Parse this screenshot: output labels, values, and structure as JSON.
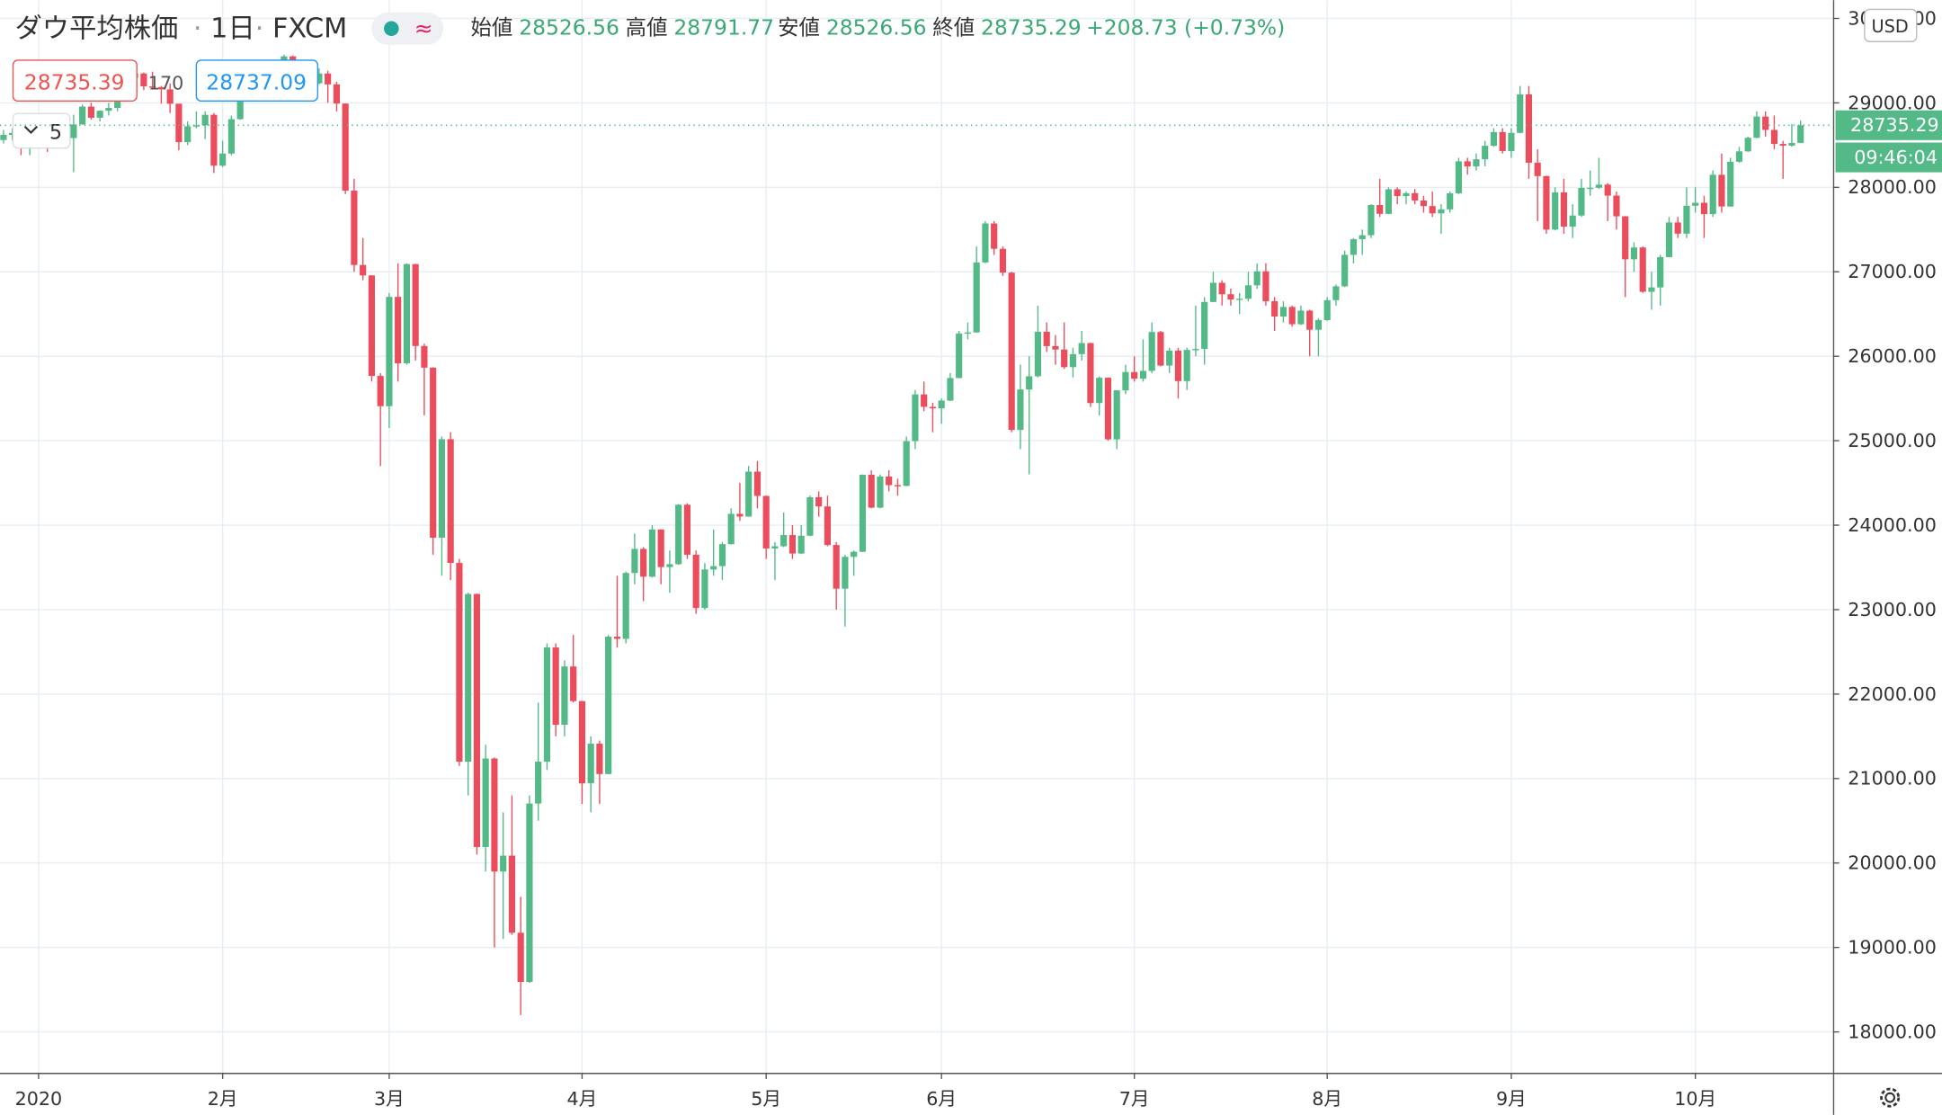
{
  "header": {
    "title": "ダウ平均株価",
    "separator": "·",
    "interval": "1日",
    "source": "FXCM",
    "mode_symbol": "≈",
    "labels": {
      "open": "始値",
      "high": "高値",
      "low": "安値",
      "close": "終値"
    },
    "change": "+208.73 (+0.73%)",
    "sell_price": 28735.39,
    "spread": 170,
    "buy_price": 28737.09,
    "indicator_count": 5,
    "currency": "USD",
    "countdown": "09:46:04"
  },
  "chart_data": {
    "type": "candlestick",
    "up_color": "#53b987",
    "down_color": "#eb4d5c",
    "grid": true,
    "xlim": [
      -0.4,
      208.7
    ],
    "ylim": [
      17516,
      30217
    ],
    "xticks": [
      {
        "value": 4,
        "label": "2020"
      },
      {
        "value": 25,
        "label": "2月"
      },
      {
        "value": 44,
        "label": "3月"
      },
      {
        "value": 66,
        "label": "4月"
      },
      {
        "value": 87,
        "label": "5月"
      },
      {
        "value": 107,
        "label": "6月"
      },
      {
        "value": 129,
        "label": "7月"
      },
      {
        "value": 151,
        "label": "8月"
      },
      {
        "value": 172,
        "label": "9月"
      },
      {
        "value": 193,
        "label": "10月"
      }
    ],
    "yticks": [
      {
        "value": 18000,
        "label": "18000.00"
      },
      {
        "value": 19000,
        "label": "19000.00"
      },
      {
        "value": 20000,
        "label": "20000.00"
      },
      {
        "value": 21000,
        "label": "21000.00"
      },
      {
        "value": 22000,
        "label": "22000.00"
      },
      {
        "value": 23000,
        "label": "23000.00"
      },
      {
        "value": 24000,
        "label": "24000.00"
      },
      {
        "value": 25000,
        "label": "25000.00"
      },
      {
        "value": 26000,
        "label": "26000.00"
      },
      {
        "value": 27000,
        "label": "27000.00"
      },
      {
        "value": 28000,
        "label": "28000.00"
      },
      {
        "value": 29000,
        "label": "29000.00"
      },
      {
        "value": 30000,
        "label": "30000.00"
      }
    ],
    "ohlc": [
      [
        28560,
        28680,
        28520,
        28621
      ],
      [
        28621,
        28700,
        28560,
        28645
      ],
      [
        28645,
        28660,
        28380,
        28462
      ],
      [
        28462,
        28560,
        28380,
        28538
      ],
      [
        28538,
        28880,
        28500,
        28868
      ],
      [
        28868,
        28870,
        28420,
        28634
      ],
      [
        28634,
        28730,
        28460,
        28703
      ],
      [
        28703,
        28720,
        28540,
        28583
      ],
      [
        28583,
        28860,
        28180,
        28745
      ],
      [
        28745,
        28980,
        28740,
        28956
      ],
      [
        28956,
        29000,
        28800,
        28824
      ],
      [
        28824,
        28910,
        28780,
        28907
      ],
      [
        28907,
        29000,
        28850,
        28940
      ],
      [
        28940,
        29060,
        28900,
        29030
      ],
      [
        29030,
        29300,
        29020,
        29297
      ],
      [
        29297,
        29370,
        29260,
        29348
      ],
      [
        29348,
        29360,
        29150,
        29196
      ],
      [
        29196,
        29370,
        29160,
        29186
      ],
      [
        29186,
        29200,
        28990,
        29160
      ],
      [
        29160,
        29230,
        28880,
        28990
      ],
      [
        28990,
        28990,
        28440,
        28535
      ],
      [
        28535,
        28780,
        28500,
        28723
      ],
      [
        28723,
        28900,
        28700,
        28734
      ],
      [
        28734,
        28900,
        28570,
        28859
      ],
      [
        28859,
        28880,
        28170,
        28256
      ],
      [
        28256,
        28550,
        28240,
        28400
      ],
      [
        28400,
        28850,
        28380,
        28807
      ],
      [
        28807,
        29330,
        28800,
        29290
      ],
      [
        29290,
        29400,
        29260,
        29380
      ],
      [
        29380,
        29380,
        29060,
        29102
      ],
      [
        29102,
        29290,
        29050,
        29276
      ],
      [
        29276,
        29420,
        29250,
        29276
      ],
      [
        29276,
        29570,
        29270,
        29551
      ],
      [
        29551,
        29560,
        29370,
        29423
      ],
      [
        29423,
        29440,
        29340,
        29398
      ],
      [
        29398,
        29420,
        29150,
        29232
      ],
      [
        29232,
        29410,
        29220,
        29348
      ],
      [
        29348,
        29380,
        29000,
        29219
      ],
      [
        29219,
        29250,
        28900,
        28992
      ],
      [
        28992,
        28992,
        27920,
        27961
      ],
      [
        27961,
        28100,
        27000,
        27081
      ],
      [
        27081,
        27400,
        26900,
        26957
      ],
      [
        26957,
        26960,
        25700,
        25767
      ],
      [
        25767,
        25800,
        24700,
        25409
      ],
      [
        25409,
        26750,
        25150,
        26703
      ],
      [
        26703,
        27100,
        25700,
        25917
      ],
      [
        25917,
        27100,
        25900,
        27091
      ],
      [
        27091,
        27095,
        25950,
        26121
      ],
      [
        26121,
        26150,
        25300,
        25865
      ],
      [
        25865,
        25870,
        23650,
        23851
      ],
      [
        23851,
        25050,
        23400,
        25018
      ],
      [
        25018,
        25100,
        23350,
        23553
      ],
      [
        23553,
        23600,
        21150,
        21200
      ],
      [
        21200,
        23200,
        20800,
        23185
      ],
      [
        23185,
        23190,
        20100,
        20189
      ],
      [
        20189,
        21400,
        19900,
        21237
      ],
      [
        21237,
        21250,
        19000,
        19899
      ],
      [
        19899,
        20600,
        19100,
        20087
      ],
      [
        20087,
        20800,
        19150,
        19174
      ],
      [
        19174,
        19600,
        18200,
        18592
      ],
      [
        18592,
        20800,
        18580,
        20704
      ],
      [
        20704,
        21900,
        20500,
        21200
      ],
      [
        21200,
        22600,
        21100,
        22552
      ],
      [
        22552,
        22600,
        21500,
        21637
      ],
      [
        21637,
        22400,
        21500,
        22327
      ],
      [
        22327,
        22700,
        21900,
        21917
      ],
      [
        21917,
        21920,
        20700,
        20944
      ],
      [
        20944,
        21500,
        20600,
        21413
      ],
      [
        21413,
        21450,
        20700,
        21053
      ],
      [
        21053,
        22700,
        21050,
        22680
      ],
      [
        22680,
        23400,
        22550,
        22654
      ],
      [
        22654,
        23450,
        22600,
        23434
      ],
      [
        23434,
        23900,
        23300,
        23719
      ],
      [
        23719,
        23740,
        23100,
        23390
      ],
      [
        23390,
        24000,
        23380,
        23949
      ],
      [
        23949,
        23950,
        23300,
        23504
      ],
      [
        23504,
        23700,
        23200,
        23538
      ],
      [
        23538,
        24250,
        23530,
        24242
      ],
      [
        24242,
        24260,
        23600,
        23650
      ],
      [
        23650,
        23700,
        22950,
        23019
      ],
      [
        23019,
        23550,
        23000,
        23475
      ],
      [
        23475,
        23950,
        23400,
        23515
      ],
      [
        23515,
        23800,
        23350,
        23775
      ],
      [
        23775,
        24200,
        23770,
        24134
      ],
      [
        24134,
        24500,
        24050,
        24102
      ],
      [
        24102,
        24700,
        24100,
        24634
      ],
      [
        24634,
        24760,
        24200,
        24346
      ],
      [
        24346,
        24350,
        23600,
        23724
      ],
      [
        23724,
        23800,
        23350,
        23750
      ],
      [
        23750,
        24150,
        23740,
        23883
      ],
      [
        23883,
        24000,
        23600,
        23664
      ],
      [
        23664,
        24000,
        23660,
        23875
      ],
      [
        23875,
        24350,
        23870,
        24331
      ],
      [
        24331,
        24400,
        24100,
        24222
      ],
      [
        24222,
        24350,
        23750,
        23765
      ],
      [
        23765,
        23800,
        23000,
        23248
      ],
      [
        23248,
        23650,
        22800,
        23625
      ],
      [
        23625,
        23700,
        23400,
        23685
      ],
      [
        23685,
        24600,
        23680,
        24597
      ],
      [
        24597,
        24650,
        24200,
        24207
      ],
      [
        24207,
        24600,
        24200,
        24576
      ],
      [
        24576,
        24650,
        24400,
        24474
      ],
      [
        24474,
        24550,
        24350,
        24465
      ],
      [
        24465,
        25050,
        24460,
        24995
      ],
      [
        24995,
        25600,
        24900,
        25548
      ],
      [
        25548,
        25700,
        25350,
        25401
      ],
      [
        25401,
        25450,
        25100,
        25383
      ],
      [
        25383,
        25500,
        25200,
        25475
      ],
      [
        25475,
        25800,
        25470,
        25742
      ],
      [
        25742,
        26300,
        25740,
        26270
      ],
      [
        26270,
        26400,
        26200,
        26282
      ],
      [
        26282,
        27300,
        26280,
        27111
      ],
      [
        27111,
        27600,
        27100,
        27572
      ],
      [
        27572,
        27600,
        27200,
        27272
      ],
      [
        27272,
        27300,
        26950,
        26990
      ],
      [
        26990,
        27000,
        25100,
        25128
      ],
      [
        25128,
        25900,
        24900,
        25606
      ],
      [
        25606,
        26000,
        24600,
        25763
      ],
      [
        25763,
        26600,
        25750,
        26290
      ],
      [
        26290,
        26400,
        26050,
        26120
      ],
      [
        26120,
        26250,
        25900,
        26080
      ],
      [
        26080,
        26400,
        25850,
        25871
      ],
      [
        25871,
        26100,
        25750,
        26025
      ],
      [
        26025,
        26300,
        25950,
        26156
      ],
      [
        26156,
        26160,
        25400,
        25446
      ],
      [
        25446,
        25760,
        25300,
        25745
      ],
      [
        25745,
        25750,
        25000,
        25016
      ],
      [
        25016,
        25600,
        24900,
        25596
      ],
      [
        25596,
        25900,
        25550,
        25813
      ],
      [
        25813,
        26000,
        25700,
        25734
      ],
      [
        25734,
        26200,
        25700,
        25827
      ],
      [
        25827,
        26400,
        25800,
        26287
      ],
      [
        26287,
        26300,
        25880,
        25890
      ],
      [
        25890,
        26100,
        25800,
        26067
      ],
      [
        26067,
        26100,
        25500,
        25706
      ],
      [
        25706,
        26100,
        25600,
        26075
      ],
      [
        26075,
        26600,
        26000,
        26086
      ],
      [
        26086,
        26700,
        25900,
        26643
      ],
      [
        26643,
        27000,
        26640,
        26870
      ],
      [
        26870,
        26900,
        26600,
        26734
      ],
      [
        26734,
        26800,
        26600,
        26672
      ],
      [
        26672,
        26750,
        26500,
        26681
      ],
      [
        26681,
        27000,
        26650,
        26840
      ],
      [
        26840,
        27100,
        26800,
        27005
      ],
      [
        27005,
        27100,
        26600,
        26652
      ],
      [
        26652,
        26700,
        26300,
        26470
      ],
      [
        26470,
        26650,
        26400,
        26584
      ],
      [
        26584,
        26600,
        26350,
        26379
      ],
      [
        26379,
        26600,
        26370,
        26540
      ],
      [
        26540,
        26550,
        26000,
        26314
      ],
      [
        26314,
        26450,
        26000,
        26428
      ],
      [
        26428,
        26700,
        26420,
        26664
      ],
      [
        26664,
        26850,
        26600,
        26828
      ],
      [
        26828,
        27250,
        26820,
        27201
      ],
      [
        27201,
        27400,
        27100,
        27386
      ],
      [
        27386,
        27500,
        27200,
        27433
      ],
      [
        27433,
        27800,
        27400,
        27791
      ],
      [
        27791,
        28100,
        27650,
        27686
      ],
      [
        27686,
        28000,
        27680,
        27977
      ],
      [
        27977,
        28000,
        27800,
        27896
      ],
      [
        27896,
        27950,
        27800,
        27931
      ],
      [
        27931,
        27980,
        27800,
        27844
      ],
      [
        27844,
        27900,
        27700,
        27778
      ],
      [
        27778,
        27950,
        27650,
        27692
      ],
      [
        27692,
        27800,
        27450,
        27739
      ],
      [
        27739,
        27950,
        27700,
        27930
      ],
      [
        27930,
        28350,
        27920,
        28308
      ],
      [
        28308,
        28350,
        28150,
        28248
      ],
      [
        28248,
        28400,
        28200,
        28332
      ],
      [
        28332,
        28550,
        28250,
        28492
      ],
      [
        28492,
        28700,
        28480,
        28654
      ],
      [
        28654,
        28700,
        28400,
        28430
      ],
      [
        28430,
        28700,
        28350,
        28645
      ],
      [
        28645,
        29200,
        28640,
        29100
      ],
      [
        29100,
        29200,
        28100,
        28292
      ],
      [
        28292,
        28450,
        27600,
        28133
      ],
      [
        28133,
        28140,
        27450,
        27500
      ],
      [
        27500,
        28000,
        27490,
        27940
      ],
      [
        27940,
        28100,
        27450,
        27535
      ],
      [
        27535,
        27800,
        27400,
        27666
      ],
      [
        27666,
        28100,
        27650,
        27993
      ],
      [
        27993,
        28200,
        27900,
        27995
      ],
      [
        27995,
        28350,
        27980,
        28032
      ],
      [
        28032,
        28050,
        27600,
        27902
      ],
      [
        27902,
        27950,
        27500,
        27657
      ],
      [
        27657,
        27660,
        26700,
        27148
      ],
      [
        27148,
        27350,
        27000,
        27288
      ],
      [
        27288,
        27300,
        26750,
        26763
      ],
      [
        26763,
        27000,
        26550,
        26815
      ],
      [
        26815,
        27200,
        26600,
        27174
      ],
      [
        27174,
        27650,
        27170,
        27584
      ],
      [
        27584,
        27650,
        27400,
        27452
      ],
      [
        27452,
        28000,
        27400,
        27782
      ],
      [
        27782,
        28000,
        27700,
        27817
      ],
      [
        27817,
        27900,
        27400,
        27683
      ],
      [
        27683,
        28200,
        27650,
        28149
      ],
      [
        28149,
        28400,
        27700,
        27773
      ],
      [
        27773,
        28350,
        27770,
        28303
      ],
      [
        28303,
        28480,
        28290,
        28426
      ],
      [
        28426,
        28600,
        28420,
        28587
      ],
      [
        28587,
        28900,
        28580,
        28838
      ],
      [
        28838,
        28900,
        28600,
        28680
      ],
      [
        28680,
        28850,
        28450,
        28514
      ],
      [
        28514,
        28550,
        28100,
        28494
      ],
      [
        28494,
        28750,
        28480,
        28526
      ],
      [
        28526.56,
        28791.77,
        28526.56,
        28735.29
      ]
    ]
  }
}
